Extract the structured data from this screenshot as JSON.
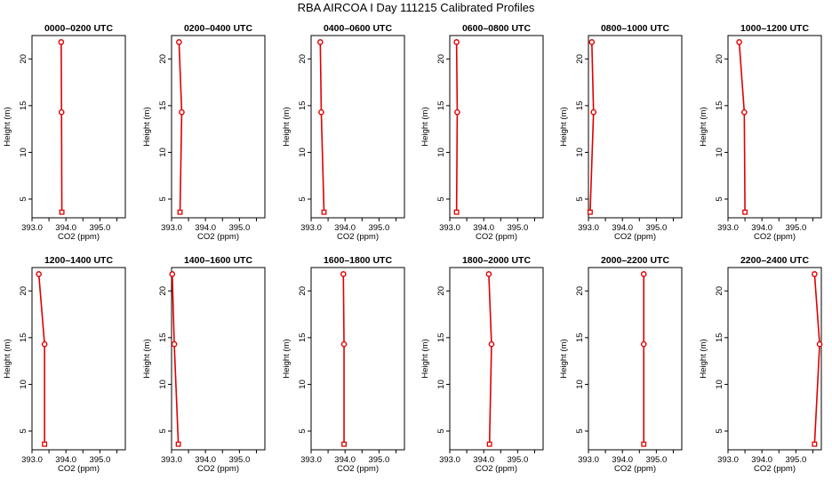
{
  "title": "RBA AIRCOA I  Day 111215  Calibrated Profiles",
  "chart_data": {
    "type": "line",
    "xlabel": "CO2 (ppm)",
    "ylabel": "Height (m)",
    "xlim": [
      393.0,
      395.75
    ],
    "ylim": [
      3.0,
      22.5
    ],
    "xticks": [
      393.0,
      393.5,
      394.0,
      394.5,
      395.0,
      395.5
    ],
    "xtick_labels": [
      "393.0",
      "",
      "394.0",
      "",
      "395.0",
      ""
    ],
    "yticks": [
      5,
      10,
      15,
      20
    ],
    "ytick_labels": [
      "5",
      "10",
      "15",
      "20"
    ],
    "heights": [
      3.6,
      14.3,
      21.8
    ],
    "line_color": "#e00000",
    "marker_color": "#e00000",
    "panels": [
      {
        "title": "0000–0200 UTC",
        "x": [
          393.88,
          393.87,
          393.86
        ]
      },
      {
        "title": "0200–0400 UTC",
        "x": [
          393.25,
          393.3,
          393.22
        ]
      },
      {
        "title": "0400–0600 UTC",
        "x": [
          393.38,
          393.3,
          393.27
        ]
      },
      {
        "title": "0600–0800 UTC",
        "x": [
          393.2,
          393.22,
          393.2
        ]
      },
      {
        "title": "0800–1000 UTC",
        "x": [
          393.05,
          393.15,
          393.1
        ]
      },
      {
        "title": "1000–1200 UTC",
        "x": [
          393.5,
          393.48,
          393.33
        ]
      },
      {
        "title": "1200–1400 UTC",
        "x": [
          393.37,
          393.37,
          393.2
        ]
      },
      {
        "title": "1400–1600 UTC",
        "x": [
          393.2,
          393.08,
          393.02
        ]
      },
      {
        "title": "1600–1800 UTC",
        "x": [
          393.97,
          393.97,
          393.95
        ]
      },
      {
        "title": "1800–2000 UTC",
        "x": [
          394.17,
          394.23,
          394.15
        ]
      },
      {
        "title": "2000–2200 UTC",
        "x": [
          394.63,
          394.63,
          394.63
        ]
      },
      {
        "title": "2200–2400 UTC",
        "x": [
          395.55,
          395.7,
          395.55
        ]
      }
    ]
  }
}
